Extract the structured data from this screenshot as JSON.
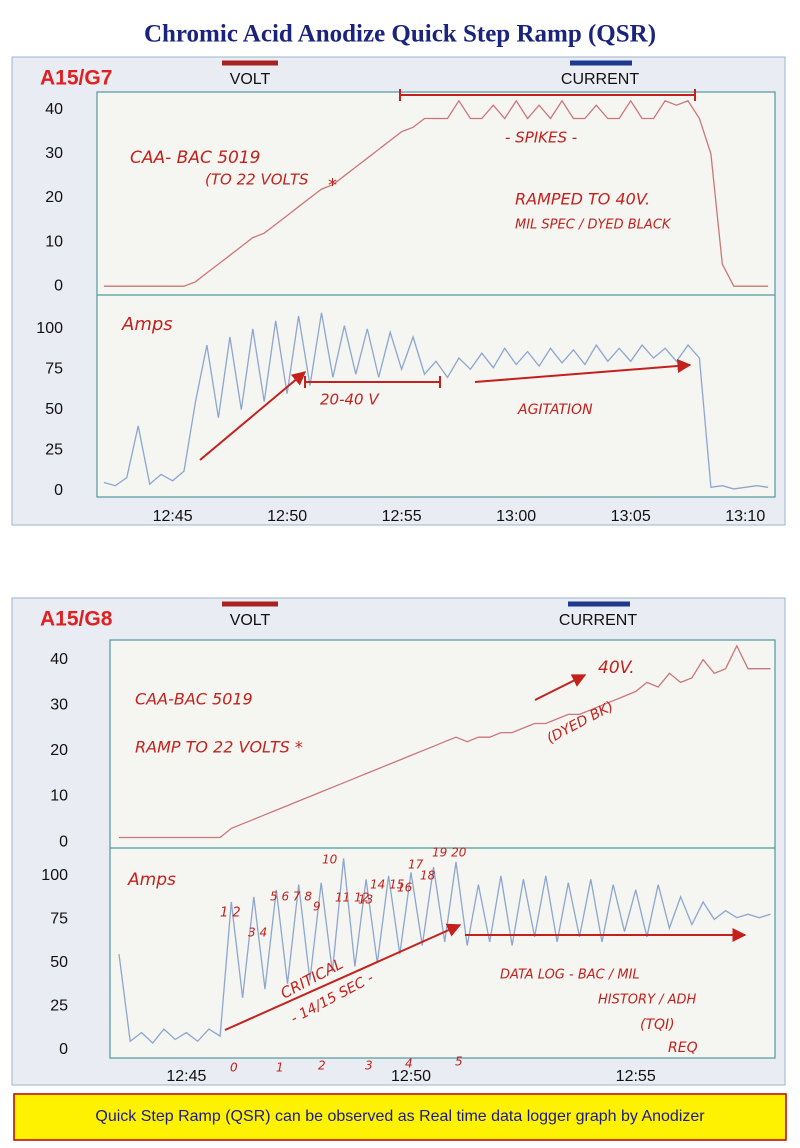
{
  "title": "Chromic Acid Anodize Quick Step Ramp (QSR)",
  "footer": "Quick Step Ramp (QSR) can be observed as Real time data logger graph by Anodizer",
  "chart_data": [
    {
      "type": "line",
      "label": "A15/G7",
      "x": [
        42,
        42.5,
        43,
        43.5,
        44,
        44.5,
        45,
        45.5,
        46,
        46.5,
        47,
        47.5,
        48,
        48.5,
        49,
        49.5,
        50,
        50.5,
        51,
        51.5,
        52,
        52.5,
        53,
        53.5,
        54,
        54.5,
        55,
        55.5,
        56,
        56.5,
        57,
        57.5,
        58,
        58.5,
        59,
        59.5,
        60,
        60.5,
        61,
        61.5,
        62,
        62.5,
        63,
        63.5,
        64,
        64.5,
        65,
        65.5,
        66,
        66.5,
        67,
        67.5,
        68,
        68.5,
        69,
        69.5,
        70,
        70.5,
        71
      ],
      "xlim": [
        41.7,
        71.3
      ],
      "xticks": [
        {
          "value": 45,
          "label": "12:45"
        },
        {
          "value": 50,
          "label": "12:50"
        },
        {
          "value": 55,
          "label": "12:55"
        },
        {
          "value": 60,
          "label": "13:00"
        },
        {
          "value": 65,
          "label": "13:05"
        },
        {
          "value": 70,
          "label": "13:10"
        }
      ],
      "ylim": [
        -2,
        44
      ],
      "yticks": [
        0,
        10,
        20,
        30,
        40
      ],
      "y2lim": [
        -4,
        121
      ],
      "y2ticks": [
        0,
        25,
        50,
        75,
        100
      ],
      "series": [
        {
          "name": "VOLT",
          "color": "#a82222",
          "trace_color": "#cc7777",
          "values": [
            0,
            0,
            0,
            0,
            0,
            0,
            0,
            0,
            1,
            3,
            5,
            7,
            9,
            11,
            12,
            14,
            16,
            18,
            20,
            22,
            23,
            25,
            27,
            29,
            31,
            33,
            35,
            36,
            38,
            38,
            38,
            42,
            38,
            38,
            41,
            38,
            42,
            38,
            41,
            38,
            42,
            38,
            38,
            41,
            38,
            38,
            42,
            38,
            38,
            42,
            41,
            42,
            38,
            30,
            5,
            0,
            0,
            0,
            0
          ]
        },
        {
          "name": "CURRENT",
          "color": "#1c3a8e",
          "trace_color": "#8ea6cf",
          "axis": "y2",
          "values": [
            5,
            3,
            8,
            40,
            4,
            10,
            6,
            12,
            55,
            90,
            45,
            95,
            50,
            100,
            55,
            105,
            60,
            108,
            65,
            110,
            70,
            102,
            72,
            100,
            70,
            98,
            75,
            95,
            72,
            80,
            70,
            82,
            75,
            85,
            76,
            88,
            78,
            86,
            77,
            88,
            79,
            87,
            78,
            90,
            80,
            88,
            80,
            90,
            82,
            88,
            80,
            90,
            82,
            2,
            3,
            1,
            2,
            3,
            2
          ]
        }
      ],
      "annotations": [
        "CAA- BAC 5019",
        "(TO 22 VOLTS",
        "*",
        "- SPIKES -",
        "RAMPED TO 40V.",
        "MIL SPEC / DYED BLACK",
        "Amps",
        "20-40 V",
        "AGITATION"
      ]
    },
    {
      "type": "line",
      "label": "A15/G8",
      "x": [
        43.5,
        43.75,
        44,
        44.25,
        44.5,
        44.75,
        45,
        45.25,
        45.5,
        45.75,
        46,
        46.25,
        46.5,
        46.75,
        47,
        47.25,
        47.5,
        47.75,
        48,
        48.25,
        48.5,
        48.75,
        49,
        49.25,
        49.5,
        49.75,
        50,
        50.25,
        50.5,
        50.75,
        51,
        51.25,
        51.5,
        51.75,
        52,
        52.25,
        52.5,
        52.75,
        53,
        53.25,
        53.5,
        53.75,
        54,
        54.25,
        54.5,
        54.75,
        55,
        55.25,
        55.5,
        55.75,
        56,
        56.25,
        56.5,
        56.75,
        57,
        57.25,
        57.5,
        57.75,
        58
      ],
      "xlim": [
        43.3,
        58.1
      ],
      "xticks": [
        {
          "value": 45,
          "label": "12:45"
        },
        {
          "value": 50,
          "label": "12:50"
        },
        {
          "value": 55,
          "label": "12:55"
        }
      ],
      "ylim": [
        -1.3,
        44.3
      ],
      "yticks": [
        0,
        10,
        20,
        30,
        40
      ],
      "y2lim": [
        -4.6,
        116
      ],
      "y2ticks": [
        0,
        25,
        50,
        75,
        100
      ],
      "series": [
        {
          "name": "VOLT",
          "color": "#a82222",
          "trace_color": "#cc7777",
          "values": [
            1,
            1,
            1,
            1,
            1,
            1,
            1,
            1,
            1,
            1,
            3,
            4,
            5,
            6,
            7,
            8,
            9,
            10,
            11,
            12,
            13,
            14,
            15,
            16,
            17,
            18,
            19,
            20,
            21,
            22,
            23,
            22,
            23,
            23,
            24,
            24,
            25,
            26,
            26,
            27,
            28,
            28,
            29,
            30,
            31,
            32,
            33,
            35,
            34,
            37,
            35,
            36,
            40,
            37,
            38,
            43,
            38,
            38,
            38
          ]
        },
        {
          "name": "CURRENT",
          "color": "#1c3a8e",
          "trace_color": "#8ea6cf",
          "axis": "y2",
          "values": [
            55,
            5,
            10,
            4,
            12,
            6,
            10,
            5,
            12,
            8,
            85,
            30,
            88,
            35,
            92,
            38,
            95,
            40,
            96,
            45,
            110,
            48,
            98,
            50,
            100,
            55,
            102,
            60,
            105,
            62,
            108,
            60,
            95,
            62,
            100,
            60,
            98,
            65,
            100,
            62,
            96,
            65,
            98,
            62,
            95,
            68,
            92,
            65,
            95,
            70,
            88,
            72,
            85,
            75,
            80,
            76,
            78,
            76,
            78
          ]
        }
      ],
      "annotations": [
        "CAA-BAC 5019",
        "RAMP TO 22 VOLTS *",
        "40V.",
        "(DYED BK)",
        "Amps",
        "1 2",
        "3 4",
        "5 6 7 8",
        "9",
        "10",
        "11 12",
        "13",
        "14 15",
        "16",
        "17",
        "18",
        "19 20",
        "CRITICAL",
        "- 14/15 SEC -",
        "DATA LOG - BAC / MIL",
        "HISTORY / ADH",
        "(TQI)",
        "REQ",
        "0",
        "1",
        "2",
        "3",
        "4",
        "5"
      ]
    }
  ]
}
